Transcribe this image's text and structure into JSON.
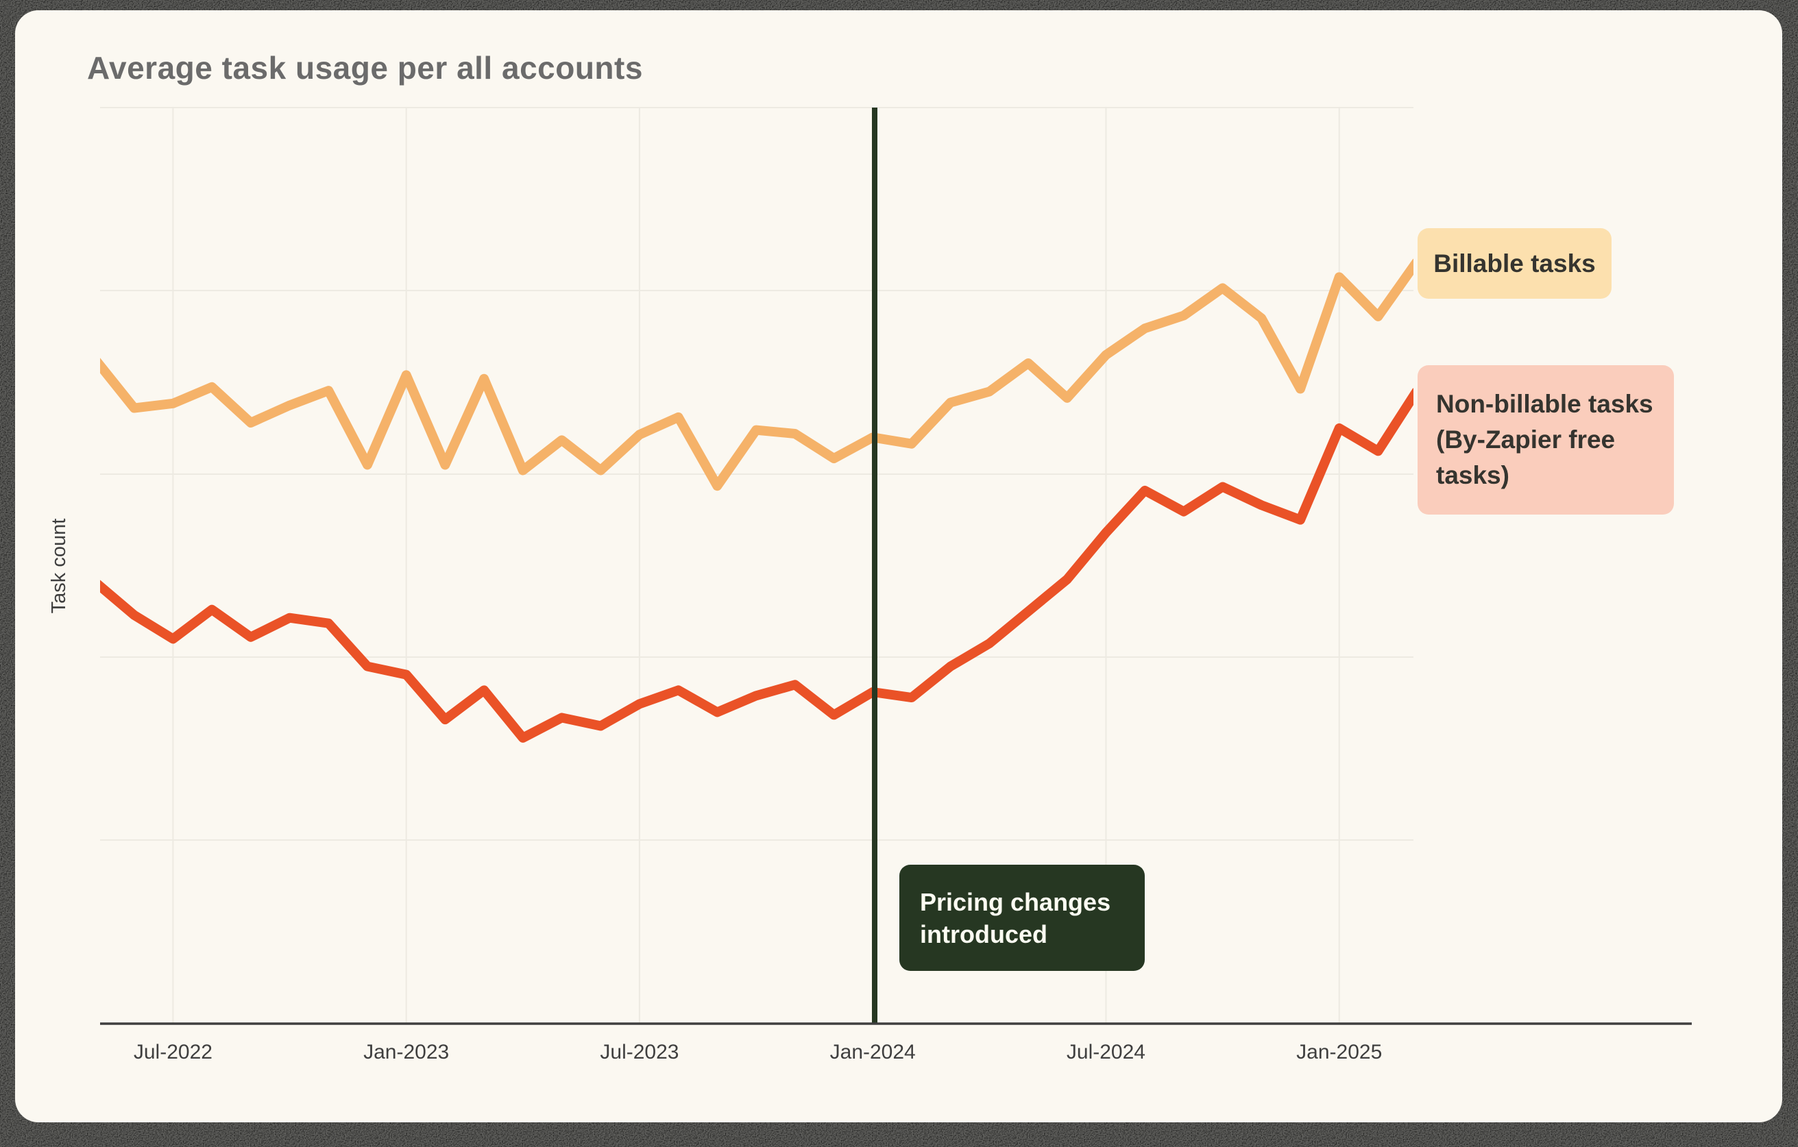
{
  "title": "Average task usage per all accounts",
  "y_axis_label": "Task count",
  "colors": {
    "billable_line": "#F5B269",
    "non_billable_line": "#EA5227",
    "billable_box_bg": "#FCE0AE",
    "non_billable_box_bg": "#FACDBC",
    "pricing_dark_green": "#263722",
    "card_background": "#FBF8F1",
    "gridline": "#EDEAE2",
    "axis": "#3F3F3F",
    "tick_text": "#3F3F3F",
    "title_text": "#6B6B6B"
  },
  "annotations": {
    "billable": {
      "lines": [
        "Billable tasks"
      ]
    },
    "non_billable": {
      "lines": [
        "Non-billable tasks",
        "(By-Zapier free",
        "tasks)"
      ]
    },
    "pricing": {
      "lines": [
        "Pricing changes",
        "introduced"
      ]
    }
  },
  "chart_data": {
    "type": "line",
    "title": "Average task usage per all accounts",
    "xlabel": "",
    "ylabel": "Task count",
    "grid": true,
    "legend_position": "right",
    "ylim": [
      0,
      100
    ],
    "y_ticks_shown": false,
    "x": [
      "May-2022",
      "Jun-2022",
      "Jul-2022",
      "Aug-2022",
      "Sep-2022",
      "Oct-2022",
      "Nov-2022",
      "Dec-2022",
      "Jan-2023",
      "Feb-2023",
      "Mar-2023",
      "Apr-2023",
      "May-2023",
      "Jun-2023",
      "Jul-2023",
      "Aug-2023",
      "Sep-2023",
      "Oct-2023",
      "Nov-2023",
      "Dec-2023",
      "Jan-2024",
      "Feb-2024",
      "Mar-2024",
      "Apr-2024",
      "May-2024",
      "Jun-2024",
      "Jul-2024",
      "Aug-2024",
      "Sep-2024",
      "Oct-2024",
      "Nov-2024",
      "Dec-2024",
      "Jan-2025",
      "Feb-2025",
      "Mar-2025"
    ],
    "x_tick_labels": [
      "Jul-2022",
      "Jan-2023",
      "Jul-2023",
      "Jan-2024",
      "Jul-2024",
      "Jan-2025"
    ],
    "series": [
      {
        "name": "Billable tasks",
        "color": "#F5B269",
        "values": [
          72.5,
          67.2,
          67.7,
          69.5,
          65.6,
          67.5,
          69.1,
          61.0,
          70.8,
          61.0,
          70.4,
          60.4,
          63.7,
          60.4,
          64.3,
          66.2,
          58.7,
          64.8,
          64.4,
          61.7,
          64.0,
          63.3,
          67.8,
          69.0,
          72.1,
          68.3,
          73.0,
          75.9,
          77.3,
          80.3,
          77.0,
          69.3,
          81.5,
          77.2,
          83.2
        ]
      },
      {
        "name": "Non-billable tasks (By-Zapier free tasks)",
        "color": "#EA5227",
        "values": [
          48.2,
          44.6,
          42.0,
          45.2,
          42.2,
          44.3,
          43.7,
          39.0,
          38.1,
          33.2,
          36.4,
          31.2,
          33.4,
          32.5,
          34.9,
          36.4,
          34.0,
          35.8,
          37.0,
          33.7,
          36.2,
          35.6,
          39.0,
          41.5,
          45.0,
          48.5,
          53.6,
          58.2,
          55.9,
          58.6,
          56.6,
          55.0,
          65.0,
          62.5,
          69.1
        ]
      }
    ],
    "annotation_vline": {
      "x": "Jan-2024",
      "label": "Pricing changes introduced",
      "color": "#263722"
    }
  }
}
